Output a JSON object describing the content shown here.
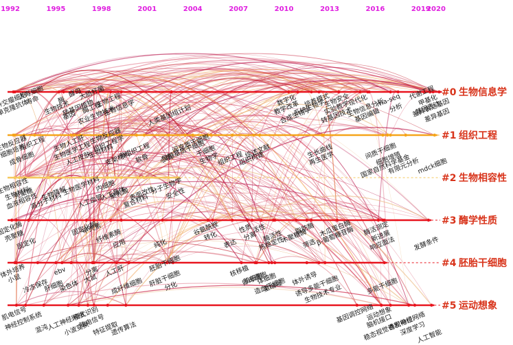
{
  "years": [
    "1992",
    "1995",
    "1998",
    "2001",
    "2004",
    "2007",
    "2010",
    "2013",
    "2016",
    "2019",
    "2020"
  ],
  "year_range": [
    1992,
    2020
  ],
  "clusters": [
    {
      "id": "#0",
      "name": "生物信息学",
      "color": "#e8141e",
      "keywords": [
        {
          "t": "杂交瘤细胞",
          "y": 1992.2,
          "d": 1
        },
        {
          "t": "单克隆抗体",
          "y": 1992.3,
          "d": 2
        },
        {
          "t": "人寿细胞",
          "y": 1993.5,
          "d": 0
        },
        {
          "t": "寿命",
          "y": 1993.6,
          "d": 1
        },
        {
          "t": "生物技术",
          "y": 1995.2,
          "d": 2
        },
        {
          "t": "酶",
          "y": 1995.5,
          "d": 1
        },
        {
          "t": "基因",
          "y": 1996.0,
          "d": 3
        },
        {
          "t": "酵母",
          "y": 1996.4,
          "d": 0
        },
        {
          "t": "转基因植物",
          "y": 1996.6,
          "d": 2
        },
        {
          "t": "大肠杆菌",
          "y": 1997.5,
          "d": 0
        },
        {
          "t": "酶工程",
          "y": 1997.5,
          "d": 2
        },
        {
          "t": "农业生物技术",
          "y": 1997.8,
          "d": 3
        },
        {
          "t": "生物工程",
          "y": 1998.6,
          "d": 1
        },
        {
          "t": "生物信息学",
          "y": 1999.3,
          "d": 2
        },
        {
          "t": "人类基因组计划",
          "y": 2002.6,
          "d": 3
        },
        {
          "t": "数字化",
          "y": 2010.3,
          "d": 1
        },
        {
          "t": "教学改革",
          "y": 2010.3,
          "d": 2
        },
        {
          "t": "合成生物学",
          "y": 2010.9,
          "d": 3
        },
        {
          "t": "培养模式",
          "y": 2012.3,
          "d": 1
        },
        {
          "t": "系统生物学",
          "y": 2011.8,
          "d": 2
        },
        {
          "t": "生物安全",
          "y": 2013.6,
          "d": 1
        },
        {
          "t": "实验教学",
          "y": 2013.6,
          "d": 2
        },
        {
          "t": "转基因技术",
          "y": 2013.6,
          "d": 3
        },
        {
          "t": "现代化",
          "y": 2015.0,
          "d": 1
        },
        {
          "t": "生物信息分析",
          "y": 2015.5,
          "d": 2
        },
        {
          "t": "基因编辑",
          "y": 2015.6,
          "d": 3
        },
        {
          "t": "rna-seq",
          "y": 2017.0,
          "d": 1
        },
        {
          "t": "分析",
          "y": 2017.5,
          "d": 2
        },
        {
          "t": "代谢工程",
          "y": 2019.2,
          "d": 0
        },
        {
          "t": "甲基化",
          "y": 2019.6,
          "d": 1
        },
        {
          "t": "基因表达",
          "y": 2019.6,
          "d": 2
        },
        {
          "t": "差异基因",
          "y": 2020.2,
          "d": 3
        },
        {
          "t": "差异表达基因",
          "y": 2019.8,
          "d": 2
        }
      ]
    },
    {
      "id": "#1",
      "name": "组织工程",
      "color": "#f5a41a",
      "keywords": [
        {
          "t": "生物反应器",
          "y": 1992.2,
          "d": 1
        },
        {
          "t": "细胞培养",
          "y": 1992.3,
          "d": 2
        },
        {
          "t": "组织工程",
          "y": 1993.6,
          "d": 1
        },
        {
          "t": "成骨细胞",
          "y": 1992.9,
          "d": 3
        },
        {
          "t": "生物人工肝",
          "y": 1996.0,
          "d": 1
        },
        {
          "t": "生物医学工程",
          "y": 1996.2,
          "d": 2
        },
        {
          "t": "人工皮肤",
          "y": 1996.6,
          "d": 3
        },
        {
          "t": "生物反应器",
          "y": 1998.4,
          "d": 0
        },
        {
          "t": "组织工程学",
          "y": 1998.6,
          "d": 1
        },
        {
          "t": "生物材料",
          "y": 1998.1,
          "d": 2
        },
        {
          "t": "支架材料",
          "y": 1999.2,
          "d": 3
        },
        {
          "t": "骨组织工程",
          "y": 2000.3,
          "d": 2
        },
        {
          "t": "软骨",
          "y": 2000.8,
          "d": 3
        },
        {
          "t": "心肌",
          "y": 2002.4,
          "d": 3
        },
        {
          "t": "间充质干细胞",
          "y": 2004.0,
          "d": 1
        },
        {
          "t": "骨髓基质干细胞",
          "y": 2003.5,
          "d": 2
        },
        {
          "t": "干细胞",
          "y": 2005.0,
          "d": 2
        },
        {
          "t": "组织工程",
          "y": 2006.6,
          "d": 3
        },
        {
          "t": "组织构建",
          "y": 2008.0,
          "d": 3
        },
        {
          "t": "生物学",
          "y": 2005.2,
          "d": 3
        },
        {
          "t": "综述文献",
          "y": 2008.4,
          "d": 2
        },
        {
          "t": "生长曲线",
          "y": 2012.5,
          "d": 2
        },
        {
          "t": "再生医学",
          "y": 2012.6,
          "d": 3
        },
        {
          "t": "间质干细胞",
          "y": 2016.5,
          "d": 2
        },
        {
          "t": "细胞增殖",
          "y": 2017.0,
          "d": 3
        },
        {
          "t": "国家自然科学基金",
          "y": 2016.8,
          "d": 4
        },
        {
          "t": "有限元分析",
          "y": 2018.0,
          "d": 4
        },
        {
          "t": "mdck细胞",
          "y": 2019.9,
          "d": 4
        }
      ]
    },
    {
      "id": "#2",
      "name": "生物相容性",
      "color": "#f6c85c",
      "keywords": [
        {
          "t": "生物相容性",
          "y": 1992.3,
          "d": 1
        },
        {
          "t": "生物材料",
          "y": 1992.6,
          "d": 2
        },
        {
          "t": "壳聚糖",
          "y": 1993.0,
          "d": 2
        },
        {
          "t": "血液相容性",
          "y": 1992.9,
          "d": 3
        },
        {
          "t": "高分子材料",
          "y": 1994.5,
          "d": 3
        },
        {
          "t": "生物降解",
          "y": 1995.0,
          "d": 2
        },
        {
          "t": "人工血管",
          "y": 1997.4,
          "d": 3
        },
        {
          "t": "生物医学材料",
          "y": 1996.8,
          "d": 1
        },
        {
          "t": "内细胞",
          "y": 1998.4,
          "d": 1
        },
        {
          "t": "人工晶体",
          "y": 1998.9,
          "d": 2
        },
        {
          "t": "表面改性",
          "y": 2000.8,
          "d": 2
        },
        {
          "t": "聚乳酸",
          "y": 1999.3,
          "d": 2
        },
        {
          "t": "复合材料",
          "y": 2000.4,
          "d": 3
        },
        {
          "t": "分子生物学",
          "y": 2002.4,
          "d": 1
        },
        {
          "t": "安全性",
          "y": 2003.0,
          "d": 2
        }
      ]
    },
    {
      "id": "#3",
      "name": "酶学性质",
      "color": "#e8141e",
      "keywords": [
        {
          "t": "固定化酶",
          "y": 1992.1,
          "d": 1
        },
        {
          "t": "壳聚糖",
          "y": 1992.4,
          "d": 2
        },
        {
          "t": "固定化",
          "y": 1993.2,
          "d": 3
        },
        {
          "t": "固定化酶",
          "y": 1997.0,
          "d": 1
        },
        {
          "t": "甲壳素",
          "y": 1997.5,
          "d": 1
        },
        {
          "t": "纤维素酶",
          "y": 1998.6,
          "d": 2
        },
        {
          "t": "应用",
          "y": 1999.3,
          "d": 3
        },
        {
          "t": "纯化",
          "y": 2002.0,
          "d": 3
        },
        {
          "t": "谷氨酰胺",
          "y": 2005.0,
          "d": 1
        },
        {
          "t": "转化",
          "y": 2005.3,
          "d": 2
        },
        {
          "t": "表达",
          "y": 2006.6,
          "d": 3
        },
        {
          "t": "性质",
          "y": 2007.6,
          "d": 1
        },
        {
          "t": "分离",
          "y": 2007.9,
          "d": 2
        },
        {
          "t": "活性",
          "y": 2008.5,
          "d": 1
        },
        {
          "t": "酶活性",
          "y": 2009.4,
          "d": 2
        },
        {
          "t": "热稳定性",
          "y": 2009.3,
          "d": 3
        },
        {
          "t": "木聚糖酶",
          "y": 2010.8,
          "d": 2
        },
        {
          "t": "脂肪酶",
          "y": 2011.5,
          "d": 1
        },
        {
          "t": "筛选",
          "y": 2011.8,
          "d": 3
        },
        {
          "t": "木瓜蛋白酶",
          "y": 2013.5,
          "d": 1
        },
        {
          "t": "β-葡萄糖苷酶",
          "y": 2013.5,
          "d": 2
        },
        {
          "t": "酶活测定",
          "y": 2016.2,
          "d": 1
        },
        {
          "t": "新进展",
          "y": 2016.5,
          "d": 2
        },
        {
          "t": "响应面法",
          "y": 2016.6,
          "d": 3
        },
        {
          "t": "发酵条件",
          "y": 2019.5,
          "d": 3
        }
      ]
    },
    {
      "id": "#4",
      "name": "胚胎干细胞",
      "color": "#e8141e",
      "keywords": [
        {
          "t": "体外培养",
          "y": 1992.3,
          "d": 1
        },
        {
          "t": "小鼠",
          "y": 1992.4,
          "d": 2
        },
        {
          "t": "冷冻保存",
          "y": 1993.8,
          "d": 3
        },
        {
          "t": "肝细胞",
          "y": 1995.0,
          "d": 3
        },
        {
          "t": "ebv",
          "y": 1995.4,
          "d": 1
        },
        {
          "t": "染色体",
          "y": 1996.0,
          "d": 3
        },
        {
          "t": "分离",
          "y": 1997.5,
          "d": 1
        },
        {
          "t": "大鼠",
          "y": 1997.4,
          "d": 2
        },
        {
          "t": "人工肝",
          "y": 1999.0,
          "d": 1
        },
        {
          "t": "成纤维细胞",
          "y": 1999.8,
          "d": 3
        },
        {
          "t": "胚胎干细胞",
          "y": 2002.3,
          "d": 0
        },
        {
          "t": "肝脏干细胞",
          "y": 2002.3,
          "d": 2
        },
        {
          "t": "分化",
          "y": 2002.7,
          "d": 3
        },
        {
          "t": "核移植",
          "y": 2007.2,
          "d": 1
        },
        {
          "t": "肌细胞",
          "y": 2008.1,
          "d": 2
        },
        {
          "t": "卵母细胞",
          "y": 2008.2,
          "d": 2
        },
        {
          "t": "体细胞",
          "y": 2009.0,
          "d": 2
        },
        {
          "t": "重编程",
          "y": 2009.4,
          "d": 3
        },
        {
          "t": "造血干细胞",
          "y": 2009.2,
          "d": 3
        },
        {
          "t": "体外诱导",
          "y": 2011.5,
          "d": 2
        },
        {
          "t": "诱导多能干细胞",
          "y": 2012.3,
          "d": 3
        },
        {
          "t": "生物技术专业",
          "y": 2012.7,
          "d": 4
        },
        {
          "t": "多能干细胞",
          "y": 2016.6,
          "d": 3
        }
      ]
    },
    {
      "id": "#5",
      "name": "运动想象",
      "color": "#e8141e",
      "keywords": [
        {
          "t": "肌电信号",
          "y": 1992.4,
          "d": 1
        },
        {
          "t": "神经控制系统",
          "y": 1993.0,
          "d": 2
        },
        {
          "t": "混沌",
          "y": 1994.2,
          "d": 3
        },
        {
          "t": "人工神经网络",
          "y": 1995.8,
          "d": 2
        },
        {
          "t": "小波变换",
          "y": 1996.5,
          "d": 3
        },
        {
          "t": "模式识别",
          "y": 1997.1,
          "d": 1
        },
        {
          "t": "脑电信号",
          "y": 1997.5,
          "d": 2
        },
        {
          "t": "特征提取",
          "y": 1998.4,
          "d": 3
        },
        {
          "t": "遗传算法",
          "y": 1999.6,
          "d": 3
        },
        {
          "t": "基因调控网络",
          "y": 2014.8,
          "d": 1
        },
        {
          "t": "运动想象",
          "y": 2016.4,
          "d": 1
        },
        {
          "t": "脑机接口",
          "y": 2016.4,
          "d": 2
        },
        {
          "t": "稳态视觉诱发电位",
          "y": 2017.0,
          "d": 3
        },
        {
          "t": "卷积神经网络",
          "y": 2018.2,
          "d": 2
        },
        {
          "t": "深度学习",
          "y": 2018.6,
          "d": 3
        },
        {
          "t": "人工智能",
          "y": 2019.7,
          "d": 4
        }
      ]
    }
  ]
}
